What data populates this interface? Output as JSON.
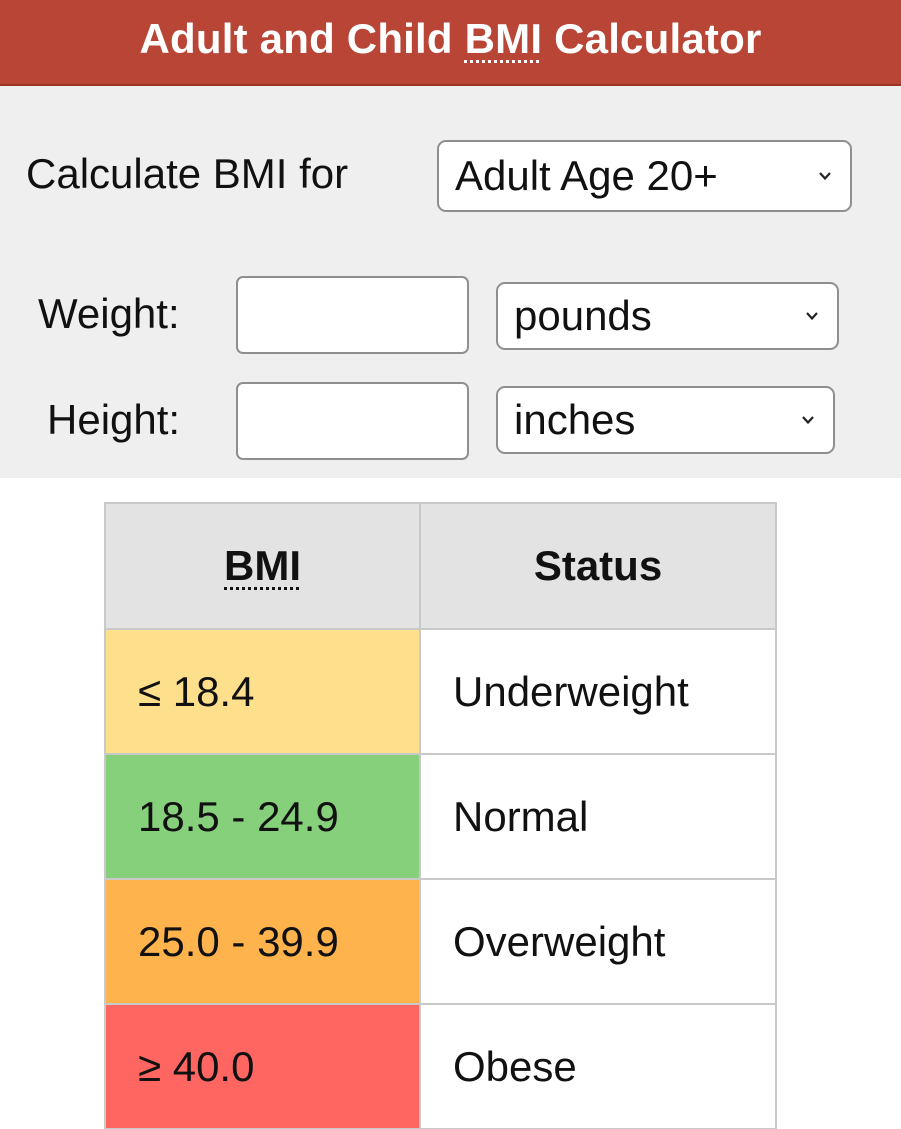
{
  "header": {
    "title_before": "Adult and Child ",
    "title_abbr": "BMI",
    "title_after": " Calculator"
  },
  "form": {
    "calculate_label": "Calculate BMI for",
    "age_group": {
      "selected": "Adult Age 20+",
      "icon": "chevron-down-icon"
    },
    "weight": {
      "label": "Weight:",
      "value": "",
      "unit_selected": "pounds"
    },
    "height": {
      "label": "Height:",
      "value": "",
      "unit_selected": "inches"
    }
  },
  "table": {
    "headers": [
      "BMI",
      "Status"
    ],
    "rows": [
      {
        "bmi": "≤ 18.4",
        "status": "Underweight",
        "color": "#fee08c"
      },
      {
        "bmi": "18.5 - 24.9",
        "status": "Normal",
        "color": "#86cf7b"
      },
      {
        "bmi": "25.0 - 39.9",
        "status": "Overweight",
        "color": "#ffb34c"
      },
      {
        "bmi": "≥ 40.0",
        "status": "Obese",
        "color": "#ff6661"
      }
    ]
  },
  "colors": {
    "header_bg": "#b84535",
    "panel_bg": "#efefef",
    "table_header_bg": "#e3e3e3"
  }
}
